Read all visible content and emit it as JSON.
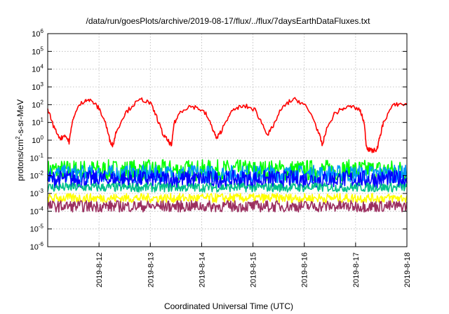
{
  "chart_data": {
    "type": "line",
    "title": "/data/run/goesPlots/archive/2019-08-17/flux/../flux/7daysEarthDataFluxes.txt",
    "xlabel": "Coordinated Universal Time (UTC)",
    "ylabel": {
      "prefix": "protons/cm",
      "sup": "2",
      "suffix": "-s-sr-MeV"
    },
    "yscale": "log",
    "ylim": [
      1e-06,
      1000000.0
    ],
    "xlim": [
      "2019-08-11T00:00",
      "2019-08-18T00:00"
    ],
    "grid": true,
    "y_ticks": [
      {
        "value": 1e-06,
        "base": "10",
        "exp": "-6"
      },
      {
        "value": 1e-05,
        "base": "10",
        "exp": "-5"
      },
      {
        "value": 0.0001,
        "base": "10",
        "exp": "-4"
      },
      {
        "value": 0.001,
        "base": "10",
        "exp": "-3"
      },
      {
        "value": 0.01,
        "base": "10",
        "exp": "-2"
      },
      {
        "value": 0.1,
        "base": "10",
        "exp": "-1"
      },
      {
        "value": 1.0,
        "base": "10",
        "exp": "0"
      },
      {
        "value": 10.0,
        "base": "10",
        "exp": "1"
      },
      {
        "value": 100.0,
        "base": "10",
        "exp": "2"
      },
      {
        "value": 1000.0,
        "base": "10",
        "exp": "3"
      },
      {
        "value": 10000.0,
        "base": "10",
        "exp": "4"
      },
      {
        "value": 100000.0,
        "base": "10",
        "exp": "5"
      },
      {
        "value": 1000000.0,
        "base": "10",
        "exp": "6"
      }
    ],
    "x_ticks": [
      {
        "value": "2019-08-12T00:00",
        "label": "2019-8-12"
      },
      {
        "value": "2019-08-13T00:00",
        "label": "2019-8-13"
      },
      {
        "value": "2019-08-14T00:00",
        "label": "2019-8-14"
      },
      {
        "value": "2019-08-15T00:00",
        "label": "2019-8-15"
      },
      {
        "value": "2019-08-16T00:00",
        "label": "2019-8-16"
      },
      {
        "value": "2019-08-17T00:00",
        "label": "2019-8-17"
      },
      {
        "value": "2019-08-18T00:00",
        "label": "2019-8-18"
      }
    ],
    "series": [
      {
        "color": "#ff0000",
        "points": [
          [
            "2019-08-11T00:00",
            60
          ],
          [
            "2019-08-11T03:00",
            5
          ],
          [
            "2019-08-11T06:00",
            1.2
          ],
          [
            "2019-08-11T08:00",
            2
          ],
          [
            "2019-08-11T10:00",
            0.8
          ],
          [
            "2019-08-11T12:00",
            20
          ],
          [
            "2019-08-11T15:00",
            100
          ],
          [
            "2019-08-11T18:00",
            200
          ],
          [
            "2019-08-11T21:00",
            150
          ],
          [
            "2019-08-12T00:00",
            60
          ],
          [
            "2019-08-12T03:00",
            10
          ],
          [
            "2019-08-12T05:00",
            1
          ],
          [
            "2019-08-12T06:30",
            0.5
          ],
          [
            "2019-08-12T08:00",
            3
          ],
          [
            "2019-08-12T12:00",
            30
          ],
          [
            "2019-08-12T16:00",
            100
          ],
          [
            "2019-08-12T20:00",
            200
          ],
          [
            "2019-08-13T00:00",
            120
          ],
          [
            "2019-08-13T03:00",
            20
          ],
          [
            "2019-08-13T06:00",
            2
          ],
          [
            "2019-08-13T08:00",
            1
          ],
          [
            "2019-08-13T10:00",
            0.5
          ],
          [
            "2019-08-13T11:00",
            8
          ],
          [
            "2019-08-13T14:00",
            40
          ],
          [
            "2019-08-13T18:00",
            80
          ],
          [
            "2019-08-13T22:00",
            70
          ],
          [
            "2019-08-14T02:00",
            30
          ],
          [
            "2019-08-14T05:00",
            5
          ],
          [
            "2019-08-14T07:00",
            1.2
          ],
          [
            "2019-08-14T09:00",
            3
          ],
          [
            "2019-08-14T13:00",
            30
          ],
          [
            "2019-08-14T17:00",
            70
          ],
          [
            "2019-08-14T21:00",
            80
          ],
          [
            "2019-08-15T01:00",
            50
          ],
          [
            "2019-08-15T04:00",
            10
          ],
          [
            "2019-08-15T07:00",
            2
          ],
          [
            "2019-08-15T09:00",
            5
          ],
          [
            "2019-08-15T13:00",
            50
          ],
          [
            "2019-08-15T17:00",
            150
          ],
          [
            "2019-08-15T20:00",
            200
          ],
          [
            "2019-08-16T00:00",
            100
          ],
          [
            "2019-08-16T04:00",
            20
          ],
          [
            "2019-08-16T07:00",
            2
          ],
          [
            "2019-08-16T08:30",
            0.5
          ],
          [
            "2019-08-16T10:00",
            3
          ],
          [
            "2019-08-16T14:00",
            30
          ],
          [
            "2019-08-16T18:00",
            60
          ],
          [
            "2019-08-16T22:00",
            80
          ],
          [
            "2019-08-17T02:00",
            50
          ],
          [
            "2019-08-17T04:00",
            10
          ],
          [
            "2019-08-17T05:00",
            0.5
          ],
          [
            "2019-08-17T06:00",
            0.3
          ],
          [
            "2019-08-17T08:00",
            0.25
          ],
          [
            "2019-08-17T10:00",
            0.3
          ],
          [
            "2019-08-17T11:00",
            1
          ],
          [
            "2019-08-17T13:00",
            10
          ],
          [
            "2019-08-17T17:00",
            80
          ],
          [
            "2019-08-17T20:00",
            110
          ],
          [
            "2019-08-18T00:00",
            100
          ]
        ]
      },
      {
        "color": "#00ff00",
        "band": [
          0.005,
          0.08
        ]
      },
      {
        "color": "#0095ff",
        "band": [
          0.004,
          0.04
        ]
      },
      {
        "color": "#0000ff",
        "band": [
          0.002,
          0.02
        ]
      },
      {
        "color": "#00c08a",
        "band": [
          0.0012,
          0.004
        ]
      },
      {
        "color": "#ffff00",
        "band": [
          0.0003,
          0.001
        ]
      },
      {
        "color": "#9b2f5f",
        "band": [
          9e-05,
          0.0004
        ]
      }
    ]
  }
}
